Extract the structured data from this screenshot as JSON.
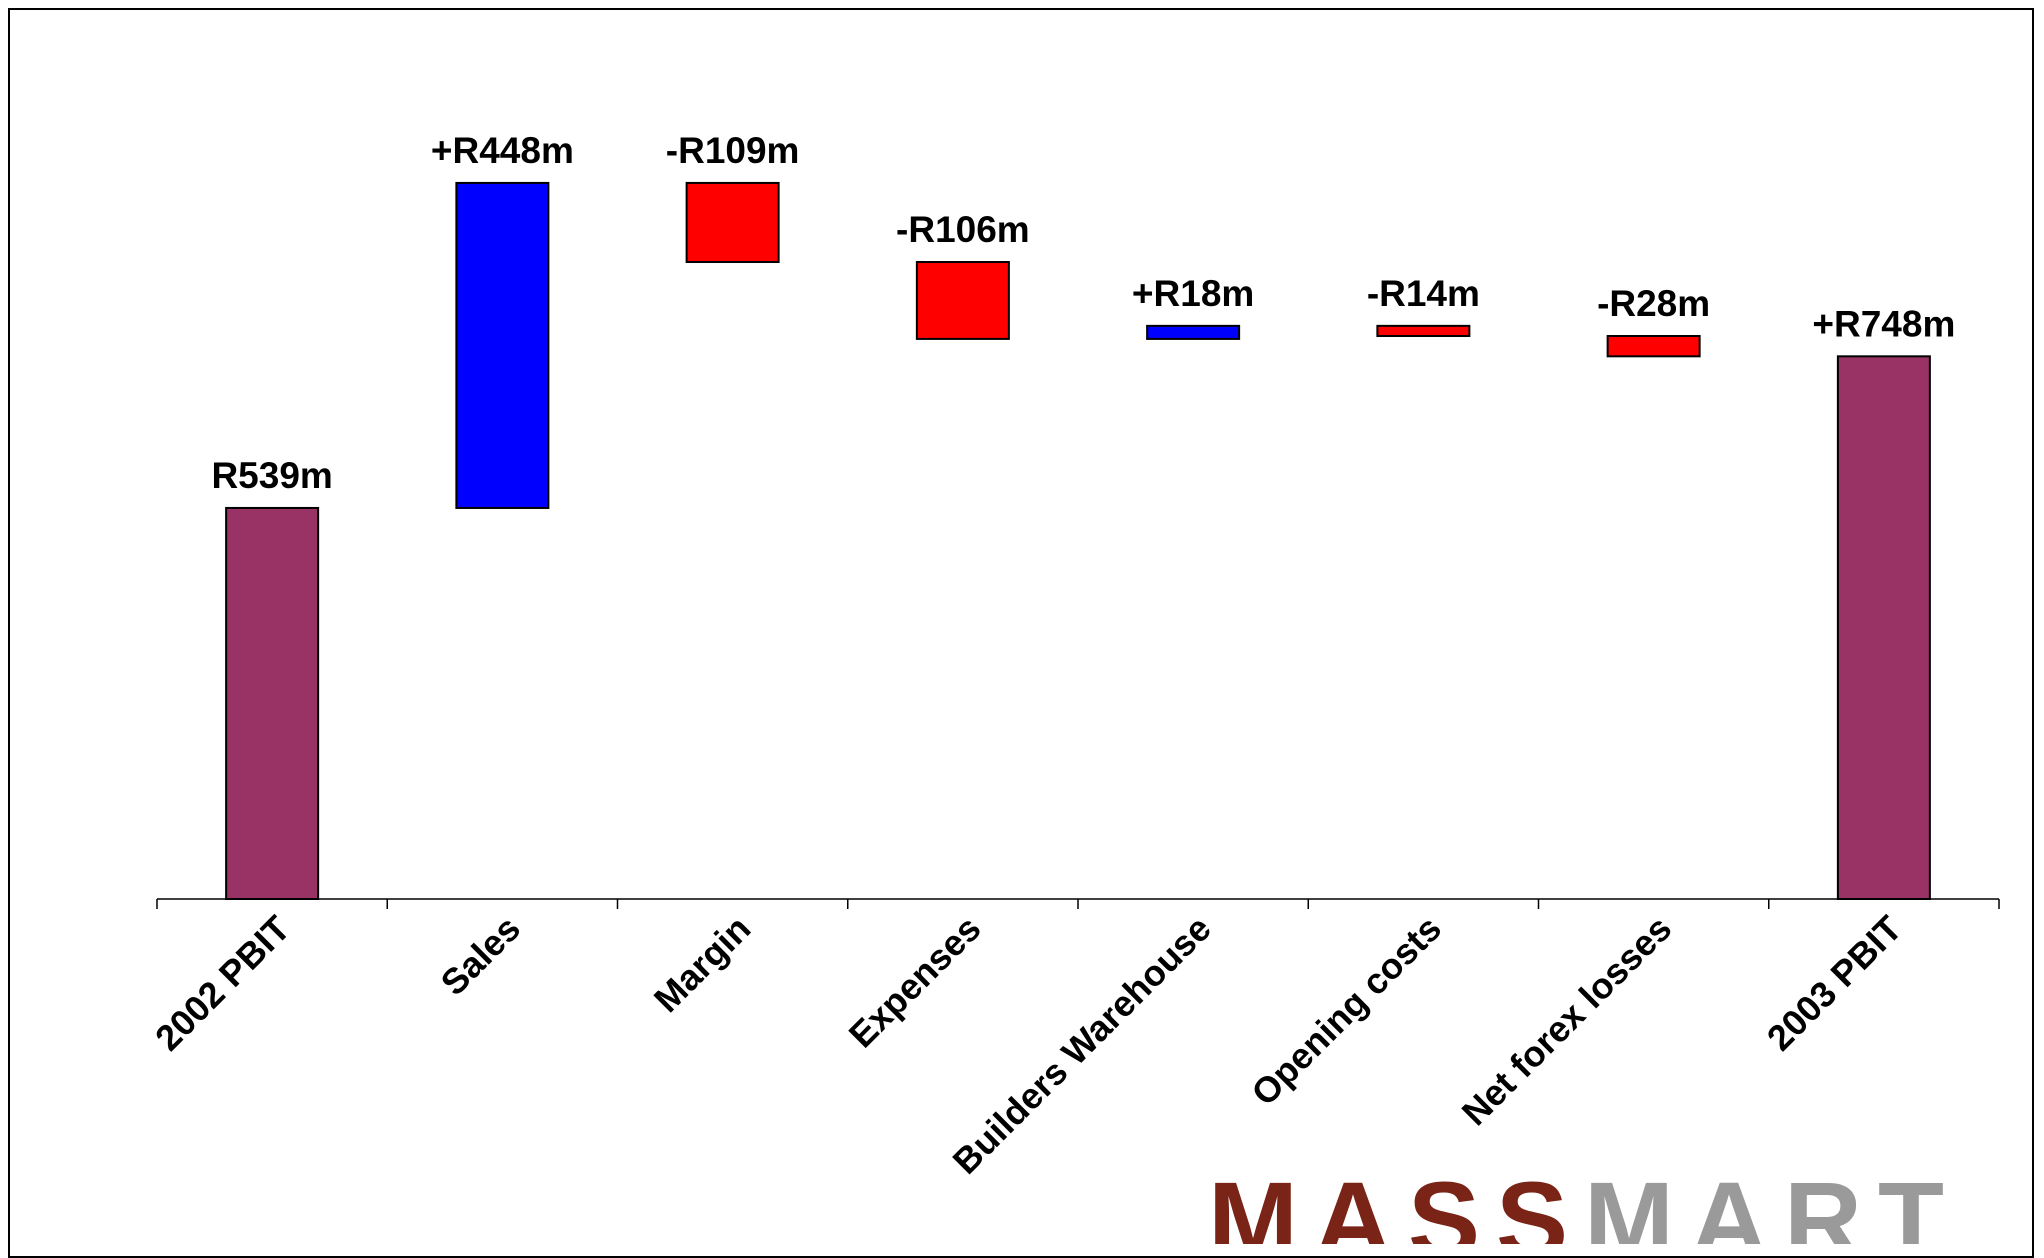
{
  "chart_data": {
    "type": "bar",
    "subtype": "waterfall",
    "categories": [
      "2002 PBIT",
      "Sales",
      "Margin",
      "Expenses",
      "Builders Warehouse",
      "Opening costs",
      "Net forex losses",
      "2003 PBIT"
    ],
    "values": [
      539,
      448,
      -109,
      -106,
      18,
      -14,
      -28,
      748
    ],
    "data_labels": [
      "R539m",
      "+R448m",
      "-R109m",
      "-R106m",
      "+R18m",
      "-R14m",
      "-R28m",
      "+R748m"
    ],
    "kinds": [
      "total",
      "delta",
      "delta",
      "delta",
      "delta",
      "delta",
      "delta",
      "total"
    ],
    "colors": {
      "total": "#993366",
      "increase": "#0000ff",
      "decrease": "#ff0000"
    },
    "ylim": [
      0,
      1000
    ],
    "grid": false,
    "legend": "none"
  },
  "logo": {
    "part1": "MASS",
    "part2": "MART"
  }
}
